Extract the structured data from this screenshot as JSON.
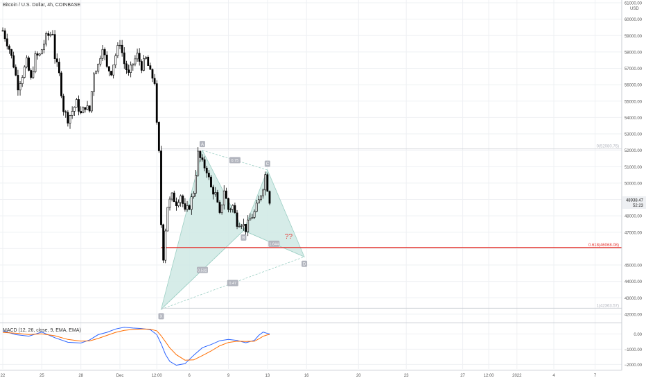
{
  "title": "Bitcoin / U.S. Dollar, 4h, COINBASE",
  "currency": "USD",
  "colors": {
    "up": "#26a69a",
    "down": "#ef5350",
    "candle": "#000000",
    "pattern_fill": "#cfe9e4",
    "pattern_line": "#9ccfc4",
    "red_level": "#e53935",
    "grid": "#eef0f3",
    "macd_line": "#2962ff",
    "signal_line": "#ff6d00",
    "axis_text": "#555555",
    "gray_label": "#b2b5be"
  },
  "price_panel": {
    "ylim": [
      41700,
      61000
    ],
    "y_ticks": [
      42000,
      43000,
      44000,
      45000,
      46000,
      47000,
      48000,
      49000,
      50000,
      51000,
      52000,
      53000,
      54000,
      55000,
      56000,
      57000,
      58000,
      59000,
      60000,
      61000
    ],
    "y_tick_labels": [
      "42000.00",
      "43000.00",
      "44000.00",
      "45000.00",
      "46000.00",
      "47000.00",
      "48000.00",
      "49000.00",
      "50000.00",
      "51000.00",
      "52000.00",
      "53000.00",
      "54000.00",
      "55000.00",
      "56000.00",
      "57000.00",
      "58000.00",
      "59000.00",
      "60000.00",
      "61000.00"
    ],
    "last_price_label": "48938.47",
    "countdown_label": "52:23"
  },
  "x_axis": {
    "labels": [
      {
        "t": 0,
        "text": "22"
      },
      {
        "t": 18,
        "text": "25"
      },
      {
        "t": 36,
        "text": "28"
      },
      {
        "t": 54,
        "text": "Dec"
      },
      {
        "t": 71,
        "text": "12:00"
      },
      {
        "t": 86,
        "text": "6"
      },
      {
        "t": 104,
        "text": "9"
      },
      {
        "t": 122,
        "text": "13"
      },
      {
        "t": 140,
        "text": "16"
      },
      {
        "t": 164,
        "text": "20"
      },
      {
        "t": 186,
        "text": "23"
      },
      {
        "t": 212,
        "text": "27"
      },
      {
        "t": 224,
        "text": "12:00"
      },
      {
        "t": 237,
        "text": "2022"
      },
      {
        "t": 254,
        "text": "4"
      },
      {
        "t": 273,
        "text": "7"
      }
    ]
  },
  "chart_data": [
    {
      "type": "candlestick",
      "title": "Bitcoin / U.S. Dollar, 4h, COINBASE",
      "ylabel": "USD",
      "close_path": [
        [
          0,
          59300
        ],
        [
          3,
          58200
        ],
        [
          5,
          57200
        ],
        [
          7,
          55900
        ],
        [
          9,
          56600
        ],
        [
          11,
          57400
        ],
        [
          13,
          56300
        ],
        [
          15,
          57700
        ],
        [
          17,
          57800
        ],
        [
          20,
          58900
        ],
        [
          23,
          59200
        ],
        [
          24,
          57700
        ],
        [
          26,
          56600
        ],
        [
          28,
          54500
        ],
        [
          30,
          53900
        ],
        [
          32,
          54400
        ],
        [
          34,
          54900
        ],
        [
          36,
          54200
        ],
        [
          38,
          54700
        ],
        [
          40,
          54400
        ],
        [
          42,
          56800
        ],
        [
          44,
          57200
        ],
        [
          46,
          58400
        ],
        [
          48,
          57000
        ],
        [
          50,
          56800
        ],
        [
          52,
          57800
        ],
        [
          54,
          58600
        ],
        [
          56,
          57300
        ],
        [
          58,
          56600
        ],
        [
          60,
          57300
        ],
        [
          62,
          57800
        ],
        [
          64,
          57100
        ],
        [
          66,
          57600
        ],
        [
          68,
          56700
        ],
        [
          70,
          56200
        ],
        [
          71,
          53500
        ],
        [
          72,
          51800
        ],
        [
          73,
          47500
        ],
        [
          74,
          45500
        ],
        [
          75,
          47200
        ],
        [
          76,
          48600
        ],
        [
          78,
          49200
        ],
        [
          80,
          48800
        ],
        [
          82,
          49300
        ],
        [
          84,
          48200
        ],
        [
          86,
          48600
        ],
        [
          88,
          49500
        ],
        [
          90,
          51800
        ],
        [
          92,
          51200
        ],
        [
          94,
          50800
        ],
        [
          96,
          49700
        ],
        [
          98,
          49300
        ],
        [
          100,
          48000
        ],
        [
          102,
          49600
        ],
        [
          104,
          48400
        ],
        [
          106,
          48600
        ],
        [
          108,
          47600
        ],
        [
          110,
          47600
        ],
        [
          112,
          47200
        ],
        [
          114,
          47800
        ],
        [
          116,
          48200
        ],
        [
          118,
          48900
        ],
        [
          120,
          49800
        ],
        [
          121,
          50500
        ],
        [
          122,
          49700
        ],
        [
          123,
          48940
        ]
      ],
      "harmonic_points": [
        {
          "label": "X",
          "t": 73,
          "price": 42300
        },
        {
          "label": "A",
          "t": 92,
          "price": 52000
        },
        {
          "label": "B",
          "t": 111,
          "price": 47100
        },
        {
          "label": "C",
          "t": 122,
          "price": 50800
        },
        {
          "label": "D",
          "t": 139,
          "price": 45500
        }
      ],
      "ratios": [
        {
          "text": "0.532",
          "between": "XB"
        },
        {
          "text": "0.75",
          "between": "AC"
        },
        {
          "text": "1.644",
          "between": "BD"
        },
        {
          "text": "0.47",
          "between": "XD"
        }
      ],
      "question_mark": "??",
      "levels": [
        {
          "label": "0(52080.76)",
          "price": 52080.76,
          "color": "gray"
        },
        {
          "label": "0.618(46068.08)",
          "price": 46068.08,
          "color": "red"
        },
        {
          "label": "1(42363.57)",
          "price": 42363.57,
          "color": "gray"
        }
      ]
    },
    {
      "type": "line",
      "title": "MACD (12, 26, close, 9, EMA, EMA)",
      "ylim": [
        -2300,
        650
      ],
      "y_ticks": [
        0,
        -1000,
        -2000
      ],
      "y_tick_labels": [
        "0.00",
        "−1000.00",
        "−2000.00"
      ],
      "series": [
        {
          "name": "MACD",
          "points": [
            [
              0,
              200
            ],
            [
              6,
              -50
            ],
            [
              12,
              -150
            ],
            [
              18,
              120
            ],
            [
              24,
              -250
            ],
            [
              30,
              -550
            ],
            [
              36,
              -600
            ],
            [
              40,
              -400
            ],
            [
              44,
              -50
            ],
            [
              48,
              100
            ],
            [
              52,
              320
            ],
            [
              56,
              430
            ],
            [
              60,
              380
            ],
            [
              64,
              350
            ],
            [
              68,
              280
            ],
            [
              71,
              -50
            ],
            [
              73,
              -650
            ],
            [
              75,
              -1350
            ],
            [
              77,
              -1800
            ],
            [
              80,
              -2050
            ],
            [
              84,
              -1950
            ],
            [
              88,
              -1400
            ],
            [
              92,
              -900
            ],
            [
              96,
              -700
            ],
            [
              100,
              -450
            ],
            [
              104,
              -360
            ],
            [
              108,
              -430
            ],
            [
              112,
              -580
            ],
            [
              116,
              -420
            ],
            [
              118,
              -100
            ],
            [
              120,
              120
            ],
            [
              122,
              30
            ],
            [
              123,
              0
            ]
          ]
        },
        {
          "name": "Signal",
          "points": [
            [
              0,
              100
            ],
            [
              6,
              40
            ],
            [
              12,
              -40
            ],
            [
              18,
              0
            ],
            [
              24,
              -120
            ],
            [
              30,
              -360
            ],
            [
              36,
              -470
            ],
            [
              40,
              -460
            ],
            [
              44,
              -300
            ],
            [
              48,
              -100
            ],
            [
              52,
              100
            ],
            [
              56,
              230
            ],
            [
              60,
              290
            ],
            [
              64,
              320
            ],
            [
              68,
              310
            ],
            [
              71,
              200
            ],
            [
              73,
              -120
            ],
            [
              75,
              -520
            ],
            [
              77,
              -920
            ],
            [
              80,
              -1360
            ],
            [
              84,
              -1720
            ],
            [
              88,
              -1700
            ],
            [
              92,
              -1420
            ],
            [
              96,
              -1120
            ],
            [
              100,
              -780
            ],
            [
              104,
              -560
            ],
            [
              108,
              -480
            ],
            [
              112,
              -500
            ],
            [
              116,
              -480
            ],
            [
              118,
              -330
            ],
            [
              120,
              -160
            ],
            [
              122,
              -60
            ],
            [
              123,
              -40
            ]
          ]
        }
      ]
    }
  ]
}
